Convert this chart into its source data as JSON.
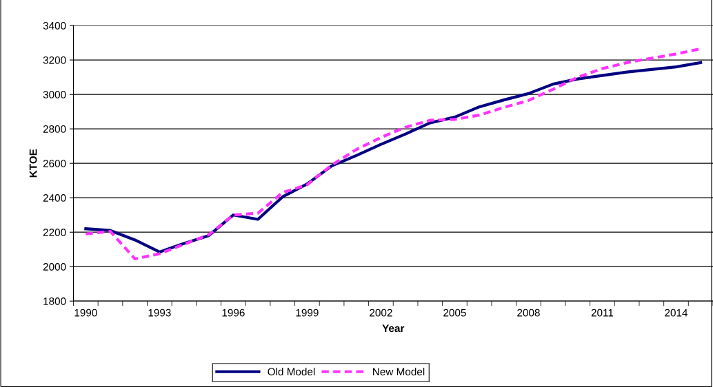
{
  "chart_data": {
    "type": "line",
    "xlabel": "Year",
    "ylabel": "KTOE",
    "categories": [
      "1990",
      null,
      null,
      "1993",
      null,
      null,
      "1996",
      null,
      null,
      "1999",
      null,
      null,
      "2002",
      null,
      null,
      "2005",
      null,
      null,
      "2008",
      null,
      null,
      "2011",
      null,
      null,
      "2014",
      null
    ],
    "series": [
      {
        "name": "Old Model",
        "color": "#000080",
        "line_style": "solid",
        "values": [
          2220,
          2210,
          2155,
          2085,
          2135,
          2180,
          2300,
          2275,
          2405,
          2480,
          2585,
          2645,
          2710,
          2770,
          2835,
          2868,
          2928,
          2968,
          3005,
          3060,
          3090,
          3110,
          3130,
          3145,
          3160,
          3185
        ]
      },
      {
        "name": "New Model",
        "color": "#ff33ff",
        "line_style": "dashed",
        "values": [
          2190,
          2205,
          2045,
          2075,
          2130,
          2185,
          2300,
          2310,
          2430,
          2475,
          2590,
          2680,
          2750,
          2810,
          2850,
          2855,
          2880,
          2925,
          2965,
          3030,
          3100,
          3150,
          3185,
          3210,
          3235,
          3265
        ]
      }
    ],
    "ylim": [
      1800,
      3400
    ],
    "yticks": [
      1800,
      2000,
      2200,
      2400,
      2600,
      2800,
      3000,
      3200,
      3400
    ],
    "grid": "y",
    "legend": "bottom",
    "marker": "none"
  }
}
